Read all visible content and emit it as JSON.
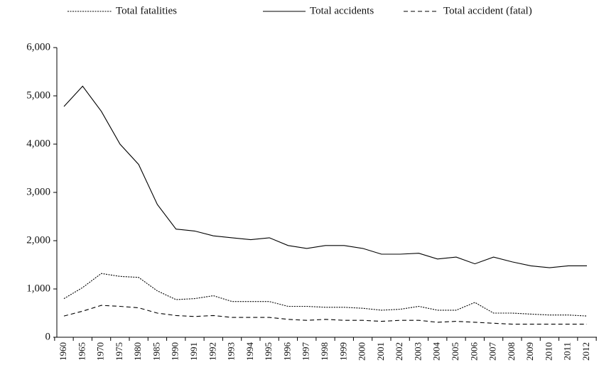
{
  "chart_data": {
    "type": "line",
    "categories": [
      "1960",
      "1965",
      "1970",
      "1975",
      "1980",
      "1985",
      "1990",
      "1991",
      "1992",
      "1993",
      "1994",
      "1995",
      "1996",
      "1997",
      "1998",
      "1999",
      "2000",
      "2001",
      "2002",
      "2003",
      "2004",
      "2005",
      "2006",
      "2007",
      "2008",
      "2009",
      "2010",
      "2011",
      "2012"
    ],
    "series": [
      {
        "name": "Total fatalities",
        "color": "#000000",
        "dash": "dotted",
        "values": [
          800,
          1030,
          1320,
          1260,
          1240,
          960,
          780,
          800,
          860,
          740,
          740,
          740,
          640,
          640,
          620,
          620,
          600,
          560,
          580,
          640,
          560,
          560,
          720,
          500,
          500,
          480,
          460,
          460,
          440
        ]
      },
      {
        "name": "Total accidents",
        "color": "#000000",
        "dash": "solid",
        "values": [
          4780,
          5200,
          4680,
          4000,
          3580,
          2750,
          2240,
          2200,
          2100,
          2060,
          2020,
          2060,
          1900,
          1840,
          1900,
          1900,
          1840,
          1720,
          1720,
          1740,
          1620,
          1660,
          1520,
          1660,
          1560,
          1480,
          1440,
          1480,
          1480
        ]
      },
      {
        "name": "Total accident (fatal)",
        "color": "#000000",
        "dash": "dashed",
        "values": [
          440,
          540,
          660,
          640,
          610,
          500,
          450,
          430,
          450,
          410,
          410,
          410,
          370,
          350,
          370,
          350,
          350,
          330,
          350,
          350,
          310,
          330,
          310,
          290,
          270,
          270,
          270,
          270,
          270
        ]
      }
    ],
    "ylim": [
      0,
      6000
    ],
    "yticks": [
      0,
      {
        "value": 1000,
        "label": "1,000"
      },
      {
        "value": 2000,
        "label": "2,000"
      },
      {
        "value": 3000,
        "label": "3,000"
      },
      {
        "value": 4000,
        "label": "4,000"
      },
      {
        "value": 5000,
        "label": "5,000"
      },
      {
        "value": 6000,
        "label": "6,000"
      }
    ],
    "legend": "top"
  }
}
